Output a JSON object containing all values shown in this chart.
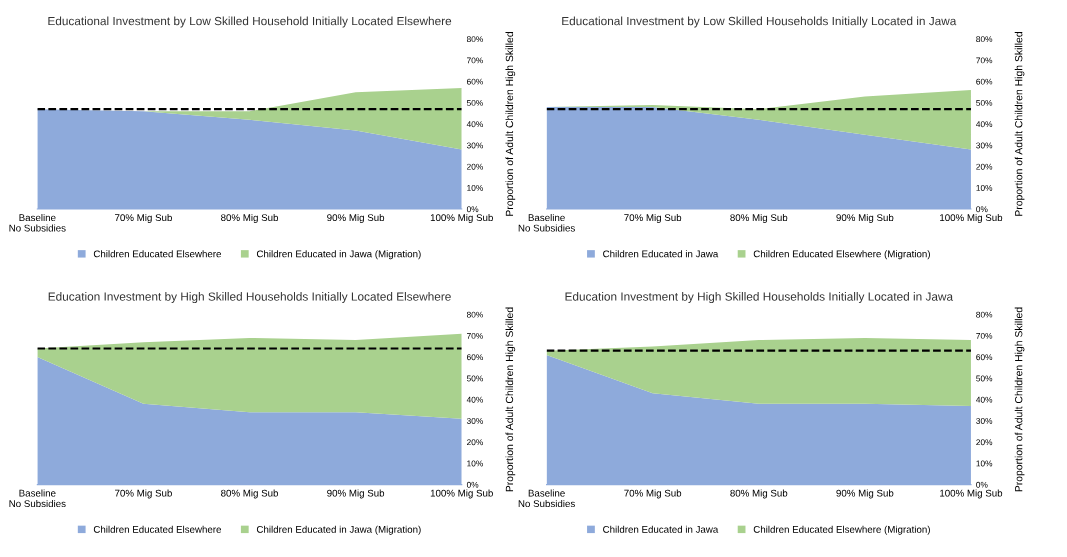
{
  "chart_data": [
    {
      "type": "area",
      "title": "Educational Investment by Low Skilled Household Initially Located Elsewhere",
      "ylabel": "Proportion of Adult Children High Skilled",
      "categories": [
        "Baseline\nNo Subsidies",
        "70% Mig Sub",
        "80% Mig Sub",
        "90% Mig Sub",
        "100% Mig Sub"
      ],
      "stacked": true,
      "series": [
        {
          "name": "Children Educated Elsewhere",
          "color": "#8eaadb",
          "values": [
            47,
            46,
            42,
            37,
            28
          ]
        },
        {
          "name": "Children Educated in Jawa (Migration)",
          "color": "#a9d18e",
          "values": [
            0,
            0,
            4,
            18,
            29
          ]
        }
      ],
      "ylim": [
        0,
        80
      ],
      "yticks": [
        {
          "value": 0,
          "label": "0%"
        },
        {
          "value": 10,
          "label": "10%"
        },
        {
          "value": 20,
          "label": "20%"
        },
        {
          "value": 30,
          "label": "30%"
        },
        {
          "value": 40,
          "label": "40%"
        },
        {
          "value": 50,
          "label": "50%"
        },
        {
          "value": 60,
          "label": "60%"
        },
        {
          "value": 70,
          "label": "70%"
        },
        {
          "value": 80,
          "label": "80%"
        }
      ],
      "ref_lines": [
        {
          "axis": "y",
          "value": 47,
          "color": "#000000",
          "line_style": "dashed"
        }
      ],
      "legend": "bottom",
      "grid": false
    },
    {
      "type": "area",
      "title": "Educational Investment by Low Skilled Households Initially Located in Jawa",
      "ylabel": "Proportion of Adult Children High Skilled",
      "categories": [
        "Baseline\nNo Subsidies",
        "70% Mig Sub",
        "80% Mig Sub",
        "90% Mig Sub",
        "100% Mig Sub"
      ],
      "stacked": true,
      "series": [
        {
          "name": "Children Educated in Jawa",
          "color": "#8eaadb",
          "values": [
            48,
            48,
            42,
            35,
            28
          ]
        },
        {
          "name": "Children Educated Elsewhere (Migration)",
          "color": "#a9d18e",
          "values": [
            0,
            1,
            5,
            18,
            28
          ]
        }
      ],
      "ylim": [
        0,
        80
      ],
      "yticks": [
        {
          "value": 0,
          "label": "0%"
        },
        {
          "value": 10,
          "label": "10%"
        },
        {
          "value": 20,
          "label": "20%"
        },
        {
          "value": 30,
          "label": "30%"
        },
        {
          "value": 40,
          "label": "40%"
        },
        {
          "value": 50,
          "label": "50%"
        },
        {
          "value": 60,
          "label": "60%"
        },
        {
          "value": 70,
          "label": "70%"
        },
        {
          "value": 80,
          "label": "80%"
        }
      ],
      "ref_lines": [
        {
          "axis": "y",
          "value": 47,
          "color": "#000000",
          "line_style": "dashed"
        }
      ],
      "legend": "bottom",
      "grid": false
    },
    {
      "type": "area",
      "title": "Education Investment by High Skilled Households Initially Located Elsewhere",
      "ylabel": "Proportion of Adult Children High Skilled",
      "categories": [
        "Baseline\nNo Subsidies",
        "70% Mig Sub",
        "80% Mig Sub",
        "90% Mig Sub",
        "100% Mig Sub"
      ],
      "stacked": true,
      "series": [
        {
          "name": "Children Educated Elsewhere",
          "color": "#8eaadb",
          "values": [
            60,
            38,
            34,
            34,
            31
          ]
        },
        {
          "name": "Children Educated in Jawa (Migration)",
          "color": "#a9d18e",
          "values": [
            4,
            29,
            35,
            34,
            40
          ]
        }
      ],
      "ylim": [
        0,
        80
      ],
      "yticks": [
        {
          "value": 0,
          "label": "0%"
        },
        {
          "value": 10,
          "label": "10%"
        },
        {
          "value": 20,
          "label": "20%"
        },
        {
          "value": 30,
          "label": "30%"
        },
        {
          "value": 40,
          "label": "40%"
        },
        {
          "value": 50,
          "label": "50%"
        },
        {
          "value": 60,
          "label": "60%"
        },
        {
          "value": 70,
          "label": "70%"
        },
        {
          "value": 80,
          "label": "80%"
        }
      ],
      "ref_lines": [
        {
          "axis": "y",
          "value": 64,
          "color": "#000000",
          "line_style": "dashed"
        }
      ],
      "legend": "bottom",
      "grid": false
    },
    {
      "type": "area",
      "title": "Education Investment by High Skilled Households Initially Located in Jawa",
      "ylabel": "Proportion of Adult Children High Skilled",
      "categories": [
        "Baseline\nNo Subsidies",
        "70% Mig Sub",
        "80% Mig Sub",
        "90% Mig Sub",
        "100% Mig Sub"
      ],
      "stacked": true,
      "series": [
        {
          "name": "Children Educated in Jawa",
          "color": "#8eaadb",
          "values": [
            61,
            43,
            38,
            38,
            37
          ]
        },
        {
          "name": "Children Educated Elsewhere (Migration)",
          "color": "#a9d18e",
          "values": [
            2,
            22,
            30,
            31,
            31
          ]
        }
      ],
      "ylim": [
        0,
        80
      ],
      "yticks": [
        {
          "value": 0,
          "label": "0%"
        },
        {
          "value": 10,
          "label": "10%"
        },
        {
          "value": 20,
          "label": "20%"
        },
        {
          "value": 30,
          "label": "30%"
        },
        {
          "value": 40,
          "label": "40%"
        },
        {
          "value": 50,
          "label": "50%"
        },
        {
          "value": 60,
          "label": "60%"
        },
        {
          "value": 70,
          "label": "70%"
        },
        {
          "value": 80,
          "label": "80%"
        }
      ],
      "ref_lines": [
        {
          "axis": "y",
          "value": 63,
          "color": "#000000",
          "line_style": "dashed"
        }
      ],
      "legend": "bottom",
      "grid": false
    }
  ]
}
